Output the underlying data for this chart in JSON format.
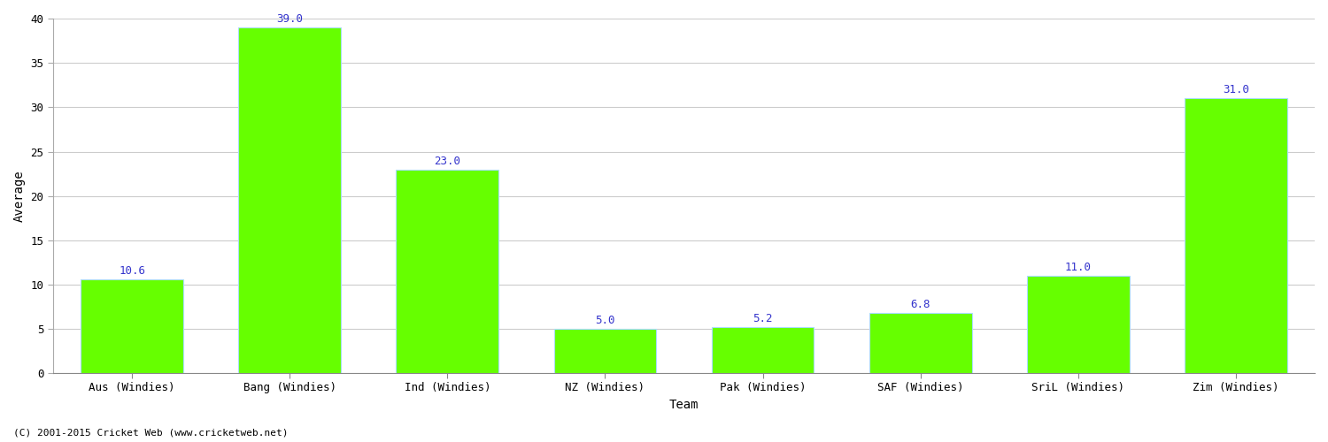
{
  "categories": [
    "Aus (Windies)",
    "Bang (Windies)",
    "Ind (Windies)",
    "NZ (Windies)",
    "Pak (Windies)",
    "SAF (Windies)",
    "SriL (Windies)",
    "Zim (Windies)"
  ],
  "values": [
    10.6,
    39.0,
    23.0,
    5.0,
    5.2,
    6.8,
    11.0,
    31.0
  ],
  "bar_color": "#66ff00",
  "bar_edge_color": "#aaddff",
  "label_color": "#3333cc",
  "xlabel": "Team",
  "ylabel": "Average",
  "ylim": [
    0,
    40
  ],
  "yticks": [
    0,
    5,
    10,
    15,
    20,
    25,
    30,
    35,
    40
  ],
  "grid_color": "#cccccc",
  "background_color": "#ffffff",
  "footnote": "(C) 2001-2015 Cricket Web (www.cricketweb.net)",
  "label_fontsize": 9,
  "axis_label_fontsize": 10,
  "tick_fontsize": 9,
  "bar_width": 0.65
}
